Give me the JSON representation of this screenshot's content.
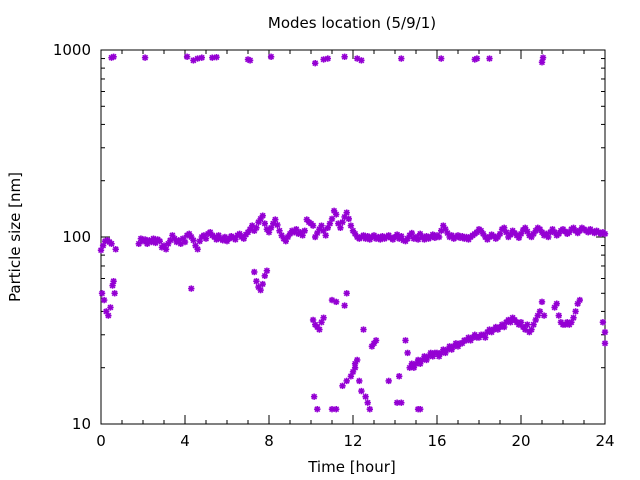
{
  "chart_data": {
    "type": "scatter",
    "title": "Modes location (5/9/1)",
    "xlabel": "Time [hour]",
    "ylabel": "Particle size [nm]",
    "xlim": [
      0,
      24
    ],
    "ylim": [
      10,
      1000
    ],
    "yscale": "log",
    "xticks": [
      0,
      4,
      8,
      12,
      16,
      20,
      24
    ],
    "yticks": [
      10,
      100,
      1000
    ],
    "grid": false,
    "legend": "none",
    "marker_color": "#9400d3",
    "points": [
      [
        0.0,
        85
      ],
      [
        0.05,
        50
      ],
      [
        0.1,
        90
      ],
      [
        0.15,
        46
      ],
      [
        0.2,
        95
      ],
      [
        0.25,
        40
      ],
      [
        0.3,
        96
      ],
      [
        0.35,
        38
      ],
      [
        0.4,
        94
      ],
      [
        0.45,
        42
      ],
      [
        0.5,
        92
      ],
      [
        0.55,
        55
      ],
      [
        0.6,
        58
      ],
      [
        0.65,
        50
      ],
      [
        0.7,
        86
      ],
      [
        0.5,
        910
      ],
      [
        0.6,
        920
      ],
      [
        1.8,
        92
      ],
      [
        1.9,
        98
      ],
      [
        2.0,
        95
      ],
      [
        2.1,
        97
      ],
      [
        2.2,
        92
      ],
      [
        2.3,
        96
      ],
      [
        2.4,
        94
      ],
      [
        2.5,
        98
      ],
      [
        2.6,
        93
      ],
      [
        2.7,
        97
      ],
      [
        2.8,
        95
      ],
      [
        2.9,
        88
      ],
      [
        3.0,
        90
      ],
      [
        3.1,
        86
      ],
      [
        3.2,
        92
      ],
      [
        3.3,
        96
      ],
      [
        3.4,
        102
      ],
      [
        3.5,
        98
      ],
      [
        3.6,
        94
      ],
      [
        3.7,
        96
      ],
      [
        3.8,
        92
      ],
      [
        3.9,
        98
      ],
      [
        4.0,
        94
      ],
      [
        4.1,
        102
      ],
      [
        4.2,
        104
      ],
      [
        4.3,
        100
      ],
      [
        4.4,
        96
      ],
      [
        4.5,
        90
      ],
      [
        4.6,
        86
      ],
      [
        4.7,
        95
      ],
      [
        4.8,
        100
      ],
      [
        4.9,
        102
      ],
      [
        5.0,
        98
      ],
      [
        5.1,
        104
      ],
      [
        5.2,
        106
      ],
      [
        5.3,
        102
      ],
      [
        5.4,
        100
      ],
      [
        5.5,
        97
      ],
      [
        5.6,
        102
      ],
      [
        5.7,
        98
      ],
      [
        5.8,
        96
      ],
      [
        5.9,
        100
      ],
      [
        6.0,
        95
      ],
      [
        6.1,
        98
      ],
      [
        6.2,
        101
      ],
      [
        6.3,
        99
      ],
      [
        6.4,
        97
      ],
      [
        6.5,
        102
      ],
      [
        6.6,
        104
      ],
      [
        6.7,
        100
      ],
      [
        6.8,
        98
      ],
      [
        6.9,
        103
      ],
      [
        7.0,
        106
      ],
      [
        7.1,
        110
      ],
      [
        7.2,
        115
      ],
      [
        7.3,
        108
      ],
      [
        7.4,
        112
      ],
      [
        7.5,
        120
      ],
      [
        7.6,
        125
      ],
      [
        7.7,
        130
      ],
      [
        7.8,
        118
      ],
      [
        7.9,
        110
      ],
      [
        8.0,
        106
      ],
      [
        8.1,
        112
      ],
      [
        8.2,
        118
      ],
      [
        8.3,
        124
      ],
      [
        8.4,
        116
      ],
      [
        8.5,
        108
      ],
      [
        8.6,
        102
      ],
      [
        8.7,
        98
      ],
      [
        8.8,
        95
      ],
      [
        8.9,
        100
      ],
      [
        9.0,
        104
      ],
      [
        9.1,
        108
      ],
      [
        9.2,
        106
      ],
      [
        9.3,
        110
      ],
      [
        9.4,
        104
      ],
      [
        9.5,
        106
      ],
      [
        9.6,
        102
      ],
      [
        9.7,
        108
      ],
      [
        9.8,
        124
      ],
      [
        9.9,
        120
      ],
      [
        10.0,
        118
      ],
      [
        10.1,
        115
      ],
      [
        10.2,
        100
      ],
      [
        10.3,
        105
      ],
      [
        10.4,
        110
      ],
      [
        10.5,
        115
      ],
      [
        10.6,
        108
      ],
      [
        10.7,
        102
      ],
      [
        10.8,
        112
      ],
      [
        10.9,
        118
      ],
      [
        11.0,
        125
      ],
      [
        11.1,
        138
      ],
      [
        11.2,
        132
      ],
      [
        11.3,
        118
      ],
      [
        11.4,
        112
      ],
      [
        11.5,
        120
      ],
      [
        11.6,
        128
      ],
      [
        11.7,
        135
      ],
      [
        11.8,
        125
      ],
      [
        11.9,
        115
      ],
      [
        12.0,
        108
      ],
      [
        12.1,
        104
      ],
      [
        12.2,
        100
      ],
      [
        12.3,
        98
      ],
      [
        12.4,
        100
      ],
      [
        12.5,
        102
      ],
      [
        12.6,
        98
      ],
      [
        12.7,
        101
      ],
      [
        12.8,
        97
      ],
      [
        12.9,
        100
      ],
      [
        13.0,
        102
      ],
      [
        13.1,
        98
      ],
      [
        13.2,
        100
      ],
      [
        13.3,
        97
      ],
      [
        13.4,
        101
      ],
      [
        13.5,
        98
      ],
      [
        13.6,
        100
      ],
      [
        13.7,
        102
      ],
      [
        13.8,
        99
      ],
      [
        13.9,
        97
      ],
      [
        14.0,
        100
      ],
      [
        14.1,
        103
      ],
      [
        14.2,
        98
      ],
      [
        14.3,
        101
      ],
      [
        14.4,
        96
      ],
      [
        14.5,
        95
      ],
      [
        14.6,
        98
      ],
      [
        14.7,
        102
      ],
      [
        14.8,
        105
      ],
      [
        14.9,
        98
      ],
      [
        15.0,
        100
      ],
      [
        15.1,
        97
      ],
      [
        15.2,
        104
      ],
      [
        15.3,
        100
      ],
      [
        15.4,
        97
      ],
      [
        15.5,
        101
      ],
      [
        15.6,
        98
      ],
      [
        15.7,
        100
      ],
      [
        15.8,
        103
      ],
      [
        15.9,
        99
      ],
      [
        16.0,
        102
      ],
      [
        16.1,
        100
      ],
      [
        16.2,
        108
      ],
      [
        16.3,
        115
      ],
      [
        16.4,
        110
      ],
      [
        16.5,
        105
      ],
      [
        16.6,
        100
      ],
      [
        16.7,
        102
      ],
      [
        16.8,
        98
      ],
      [
        16.9,
        100
      ],
      [
        17.0,
        102
      ],
      [
        17.1,
        99
      ],
      [
        17.2,
        101
      ],
      [
        17.3,
        98
      ],
      [
        17.4,
        100
      ],
      [
        17.5,
        97
      ],
      [
        17.6,
        100
      ],
      [
        17.7,
        102
      ],
      [
        17.8,
        104
      ],
      [
        17.9,
        106
      ],
      [
        18.0,
        110
      ],
      [
        18.1,
        108
      ],
      [
        18.2,
        104
      ],
      [
        18.3,
        100
      ],
      [
        18.4,
        97
      ],
      [
        18.5,
        100
      ],
      [
        18.6,
        103
      ],
      [
        18.7,
        101
      ],
      [
        18.8,
        98
      ],
      [
        18.9,
        100
      ],
      [
        19.0,
        104
      ],
      [
        19.1,
        110
      ],
      [
        19.2,
        112
      ],
      [
        19.3,
        106
      ],
      [
        19.4,
        100
      ],
      [
        19.5,
        103
      ],
      [
        19.6,
        108
      ],
      [
        19.7,
        105
      ],
      [
        19.8,
        102
      ],
      [
        19.9,
        99
      ],
      [
        20.0,
        104
      ],
      [
        20.1,
        109
      ],
      [
        20.2,
        112
      ],
      [
        20.3,
        107
      ],
      [
        20.4,
        102
      ],
      [
        20.5,
        100
      ],
      [
        20.6,
        104
      ],
      [
        20.7,
        108
      ],
      [
        20.8,
        112
      ],
      [
        20.9,
        110
      ],
      [
        21.0,
        106
      ],
      [
        21.1,
        102
      ],
      [
        21.2,
        104
      ],
      [
        21.3,
        100
      ],
      [
        21.4,
        106
      ],
      [
        21.5,
        110
      ],
      [
        21.6,
        106
      ],
      [
        21.7,
        102
      ],
      [
        21.8,
        104
      ],
      [
        21.9,
        108
      ],
      [
        22.0,
        110
      ],
      [
        22.1,
        107
      ],
      [
        22.2,
        104
      ],
      [
        22.3,
        106
      ],
      [
        22.4,
        110
      ],
      [
        22.5,
        112
      ],
      [
        22.6,
        108
      ],
      [
        22.7,
        105
      ],
      [
        22.8,
        108
      ],
      [
        22.9,
        112
      ],
      [
        23.0,
        110
      ],
      [
        23.1,
        108
      ],
      [
        23.2,
        106
      ],
      [
        23.3,
        110
      ],
      [
        23.4,
        107
      ],
      [
        23.5,
        105
      ],
      [
        23.6,
        108
      ],
      [
        23.7,
        106
      ],
      [
        23.8,
        104
      ],
      [
        23.9,
        106
      ],
      [
        24.0,
        104
      ],
      [
        7.3,
        65
      ],
      [
        7.4,
        58
      ],
      [
        7.5,
        54
      ],
      [
        7.6,
        52
      ],
      [
        7.7,
        56
      ],
      [
        7.8,
        62
      ],
      [
        7.9,
        66
      ],
      [
        4.3,
        53
      ],
      [
        2.1,
        910
      ],
      [
        4.1,
        920
      ],
      [
        4.4,
        880
      ],
      [
        4.6,
        900
      ],
      [
        4.8,
        910
      ],
      [
        5.3,
        910
      ],
      [
        5.5,
        915
      ],
      [
        7.0,
        890
      ],
      [
        7.1,
        880
      ],
      [
        8.1,
        920
      ],
      [
        10.2,
        850
      ],
      [
        10.6,
        890
      ],
      [
        10.8,
        900
      ],
      [
        11.6,
        920
      ],
      [
        12.2,
        900
      ],
      [
        12.4,
        880
      ],
      [
        14.3,
        900
      ],
      [
        16.2,
        900
      ],
      [
        17.8,
        890
      ],
      [
        17.9,
        900
      ],
      [
        18.5,
        900
      ],
      [
        21.0,
        860
      ],
      [
        21.05,
        910
      ],
      [
        10.1,
        36
      ],
      [
        10.2,
        34
      ],
      [
        10.3,
        33
      ],
      [
        10.4,
        32
      ],
      [
        10.5,
        35
      ],
      [
        10.6,
        37
      ],
      [
        11.0,
        46
      ],
      [
        11.2,
        45
      ],
      [
        11.7,
        50
      ],
      [
        11.6,
        43
      ],
      [
        12.0,
        19
      ],
      [
        12.1,
        21
      ],
      [
        12.2,
        22
      ],
      [
        12.5,
        32
      ],
      [
        12.9,
        26
      ],
      [
        13.0,
        27
      ],
      [
        13.1,
        28
      ],
      [
        10.15,
        14
      ],
      [
        10.3,
        12
      ],
      [
        11.0,
        12
      ],
      [
        11.2,
        12
      ],
      [
        11.5,
        16
      ],
      [
        11.7,
        17
      ],
      [
        11.9,
        18
      ],
      [
        12.1,
        20
      ],
      [
        12.3,
        17
      ],
      [
        12.4,
        15
      ],
      [
        12.6,
        14
      ],
      [
        12.7,
        13
      ],
      [
        12.8,
        12
      ],
      [
        13.7,
        17
      ],
      [
        14.1,
        13
      ],
      [
        14.3,
        13
      ],
      [
        15.1,
        12
      ],
      [
        15.2,
        12
      ],
      [
        14.2,
        18
      ],
      [
        14.5,
        28
      ],
      [
        14.6,
        24
      ],
      [
        14.7,
        20
      ],
      [
        14.8,
        21
      ],
      [
        14.9,
        20
      ],
      [
        15.0,
        21
      ],
      [
        15.1,
        22
      ],
      [
        15.2,
        21
      ],
      [
        15.3,
        22
      ],
      [
        15.4,
        23
      ],
      [
        15.5,
        22
      ],
      [
        15.6,
        23
      ],
      [
        15.7,
        24
      ],
      [
        15.8,
        23
      ],
      [
        15.9,
        24
      ],
      [
        16.0,
        24
      ],
      [
        16.1,
        23
      ],
      [
        16.2,
        24
      ],
      [
        16.3,
        25
      ],
      [
        16.4,
        24
      ],
      [
        16.5,
        25
      ],
      [
        16.6,
        26
      ],
      [
        16.7,
        25
      ],
      [
        16.8,
        26
      ],
      [
        16.9,
        27
      ],
      [
        17.0,
        26
      ],
      [
        17.1,
        27
      ],
      [
        17.2,
        27
      ],
      [
        17.3,
        28
      ],
      [
        17.4,
        28
      ],
      [
        17.5,
        29
      ],
      [
        17.6,
        28
      ],
      [
        17.7,
        29
      ],
      [
        17.8,
        30
      ],
      [
        17.9,
        29
      ],
      [
        18.0,
        29
      ],
      [
        18.1,
        30
      ],
      [
        18.2,
        30
      ],
      [
        18.3,
        29
      ],
      [
        18.4,
        31
      ],
      [
        18.5,
        32
      ],
      [
        18.6,
        31
      ],
      [
        18.7,
        32
      ],
      [
        18.8,
        33
      ],
      [
        18.9,
        32
      ],
      [
        19.0,
        33
      ],
      [
        19.1,
        34
      ],
      [
        19.2,
        33
      ],
      [
        19.3,
        35
      ],
      [
        19.4,
        36
      ],
      [
        19.5,
        35
      ],
      [
        19.6,
        37
      ],
      [
        19.7,
        36
      ],
      [
        19.8,
        35
      ],
      [
        19.9,
        34
      ],
      [
        20.0,
        35
      ],
      [
        20.1,
        33
      ],
      [
        20.2,
        32
      ],
      [
        20.3,
        34
      ],
      [
        20.4,
        31
      ],
      [
        20.5,
        32
      ],
      [
        20.6,
        34
      ],
      [
        20.7,
        36
      ],
      [
        20.8,
        38
      ],
      [
        20.9,
        40
      ],
      [
        21.0,
        45
      ],
      [
        21.1,
        38
      ],
      [
        21.6,
        42
      ],
      [
        21.7,
        44
      ],
      [
        21.8,
        38
      ],
      [
        21.9,
        35
      ],
      [
        22.0,
        34
      ],
      [
        22.1,
        34
      ],
      [
        22.2,
        35
      ],
      [
        22.3,
        34
      ],
      [
        22.4,
        35
      ],
      [
        22.5,
        37
      ],
      [
        22.6,
        40
      ],
      [
        22.7,
        44
      ],
      [
        22.8,
        46
      ],
      [
        23.9,
        35
      ],
      [
        24.0,
        31
      ],
      [
        24.0,
        27
      ]
    ]
  }
}
